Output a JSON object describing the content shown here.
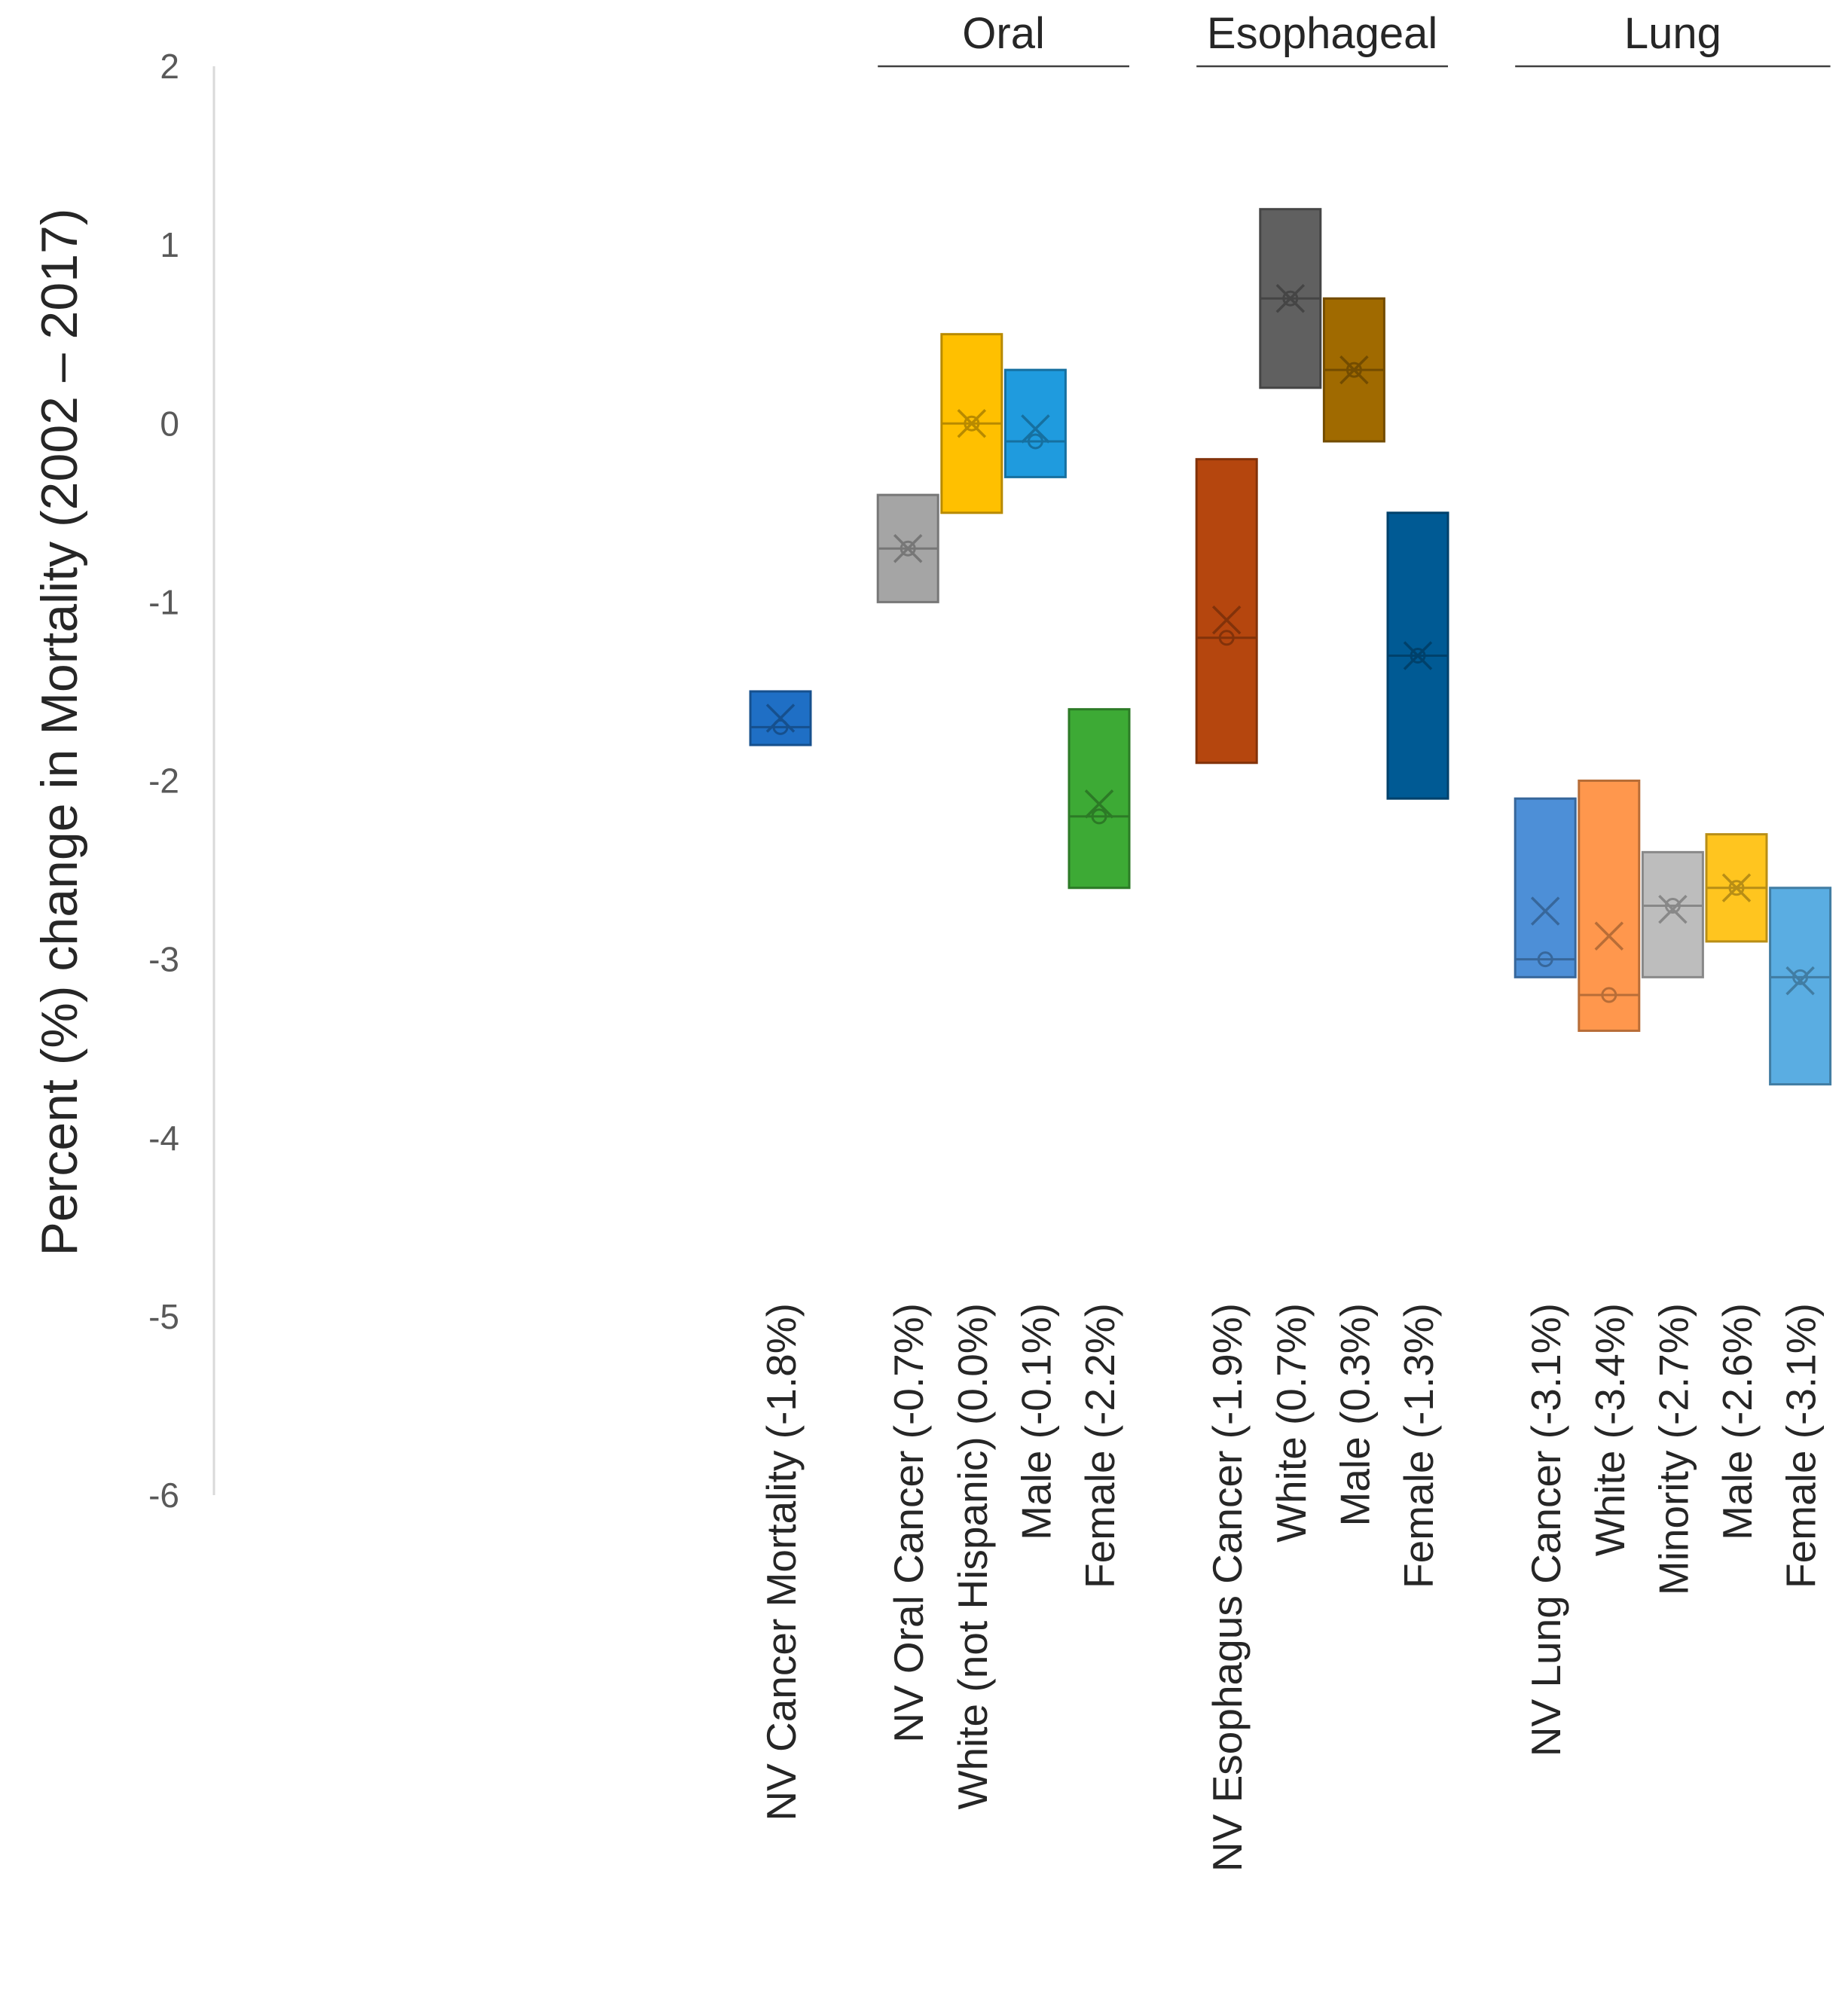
{
  "chart_data": {
    "type": "box",
    "ylabel": "Percent (%) change in Mortality (2002 – 2017)",
    "ylim": [
      -6,
      2
    ],
    "yticks": [
      "2",
      "1",
      "0",
      "-1",
      "-2",
      "-3",
      "-4",
      "-5",
      "-6"
    ],
    "ytick_values": [
      2,
      1,
      0,
      -1,
      -2,
      -3,
      -4,
      -5,
      -6
    ],
    "groups": [
      {
        "label": "Oral",
        "members": [
          1,
          2,
          3,
          4
        ]
      },
      {
        "label": "Esophageal",
        "members": [
          5,
          6,
          7,
          8
        ]
      },
      {
        "label": "Lung",
        "members": [
          9,
          10,
          11,
          12,
          13
        ]
      }
    ],
    "boxes": [
      {
        "label": "NV Cancer Mortality (-1.8%)",
        "slot": 0,
        "low": -1.8,
        "high": -1.5,
        "median": -1.7,
        "mean": -1.65,
        "color": "#1F6FC5"
      },
      {
        "label": "NV Oral Cancer (-0.7%)",
        "slot": 2,
        "low": -1.0,
        "high": -0.4,
        "median": -0.7,
        "mean": -0.7,
        "color": "#A5A5A5"
      },
      {
        "label": "White (not Hispanic) (0.0%)",
        "slot": 3,
        "low": -0.5,
        "high": 0.5,
        "median": 0.0,
        "mean": 0.0,
        "color": "#FFC000"
      },
      {
        "label": "Male (-0.1%)",
        "slot": 4,
        "low": -0.3,
        "high": 0.3,
        "median": -0.1,
        "mean": -0.03,
        "color": "#1F9BDE"
      },
      {
        "label": "Female (-2.2%)",
        "slot": 5,
        "low": -2.6,
        "high": -1.6,
        "median": -2.2,
        "mean": -2.13,
        "color": "#3DAA35"
      },
      {
        "label": "NV Esophagus Cancer (-1.9%)",
        "slot": 7,
        "low": -1.9,
        "high": -0.2,
        "median": -1.2,
        "mean": -1.1,
        "color": "#B5460E"
      },
      {
        "label": "White  (0.7%)",
        "slot": 8,
        "low": 0.2,
        "high": 1.2,
        "median": 0.7,
        "mean": 0.7,
        "color": "#606060"
      },
      {
        "label": "Male (0.3%)",
        "slot": 9,
        "low": -0.1,
        "high": 0.7,
        "median": 0.3,
        "mean": 0.3,
        "color": "#A06A00"
      },
      {
        "label": "Female (-1.3%)",
        "slot": 10,
        "low": -2.1,
        "high": -0.5,
        "median": -1.3,
        "mean": -1.3,
        "color": "#005A94"
      },
      {
        "label": "NV Lung Cancer  (-3.1%)",
        "slot": 12,
        "low": -3.1,
        "high": -2.1,
        "median": -3.0,
        "mean": -2.73,
        "color": "#4D8FD7"
      },
      {
        "label": "White  (-3.4%)",
        "slot": 13,
        "low": -3.4,
        "high": -2.0,
        "median": -3.2,
        "mean": -2.87,
        "color": "#FF974D"
      },
      {
        "label": "Minority (-2.7%)",
        "slot": 14,
        "low": -3.1,
        "high": -2.4,
        "median": -2.7,
        "mean": -2.72,
        "color": "#BDBDBD"
      },
      {
        "label": "Male (-2.6%)",
        "slot": 15,
        "low": -2.9,
        "high": -2.3,
        "median": -2.6,
        "mean": -2.6,
        "color": "#FFC51F"
      },
      {
        "label": "Female (-3.1%)",
        "slot": 16,
        "low": -3.7,
        "high": -2.6,
        "median": -3.1,
        "mean": -3.12,
        "color": "#5AADE2"
      }
    ]
  }
}
